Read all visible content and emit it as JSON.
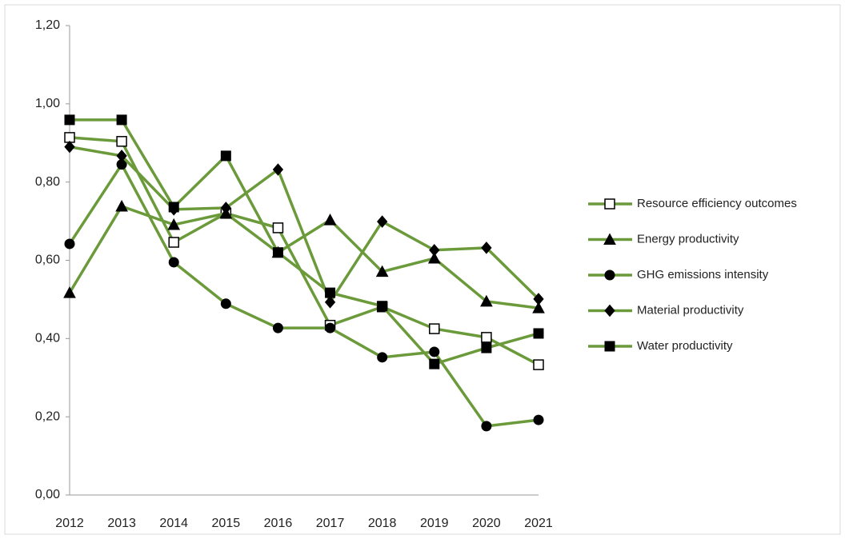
{
  "chart_data": {
    "type": "line",
    "categories": [
      "2012",
      "2013",
      "2014",
      "2015",
      "2016",
      "2017",
      "2018",
      "2019",
      "2020",
      "2021"
    ],
    "ylim": [
      0,
      1.2
    ],
    "yticks": [
      {
        "value": 0,
        "label": "0,00"
      },
      {
        "value": 0.2,
        "label": "0,20"
      },
      {
        "value": 0.4,
        "label": "0,40"
      },
      {
        "value": 0.6,
        "label": "0,60"
      },
      {
        "value": 0.8,
        "label": "0,80"
      },
      {
        "value": 1.0,
        "label": "1,00"
      },
      {
        "value": 1.2,
        "label": "1,20"
      }
    ],
    "grid": false,
    "legend": "right",
    "series": [
      {
        "name": "Resource efficiency outcomes",
        "color": "#6b9a3a",
        "marker": "square-open",
        "values": [
          0.914,
          0.904,
          0.646,
          0.72,
          0.683,
          0.434,
          0.481,
          0.425,
          0.403,
          0.333
        ]
      },
      {
        "name": "Energy productivity",
        "color": "#6b9a3a",
        "marker": "triangle",
        "values": [
          0.517,
          0.738,
          0.691,
          0.72,
          0.62,
          0.703,
          0.571,
          0.605,
          0.495,
          0.478
        ]
      },
      {
        "name": "GHG emissions intensity",
        "color": "#6b9a3a",
        "marker": "circle",
        "values": [
          0.642,
          0.845,
          0.595,
          0.489,
          0.427,
          0.427,
          0.352,
          0.366,
          0.176,
          0.192
        ]
      },
      {
        "name": "Material productivity",
        "color": "#6b9a3a",
        "marker": "diamond",
        "values": [
          0.89,
          0.867,
          0.73,
          0.734,
          0.832,
          0.493,
          0.699,
          0.626,
          0.632,
          0.501
        ]
      },
      {
        "name": "Water productivity",
        "color": "#6b9a3a",
        "marker": "square",
        "values": [
          0.959,
          0.959,
          0.736,
          0.867,
          0.62,
          0.517,
          0.483,
          0.335,
          0.376,
          0.413
        ]
      }
    ]
  }
}
